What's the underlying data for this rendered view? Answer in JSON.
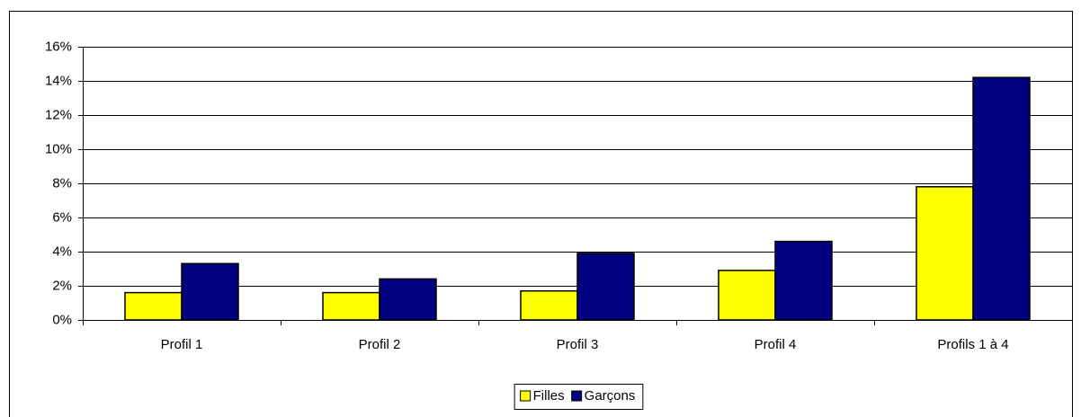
{
  "chart_data": {
    "type": "bar",
    "categories": [
      "Profil 1",
      "Profil 2",
      "Profil 3",
      "Profil 4",
      "Profils 1 à 4"
    ],
    "series": [
      {
        "name": "Filles",
        "color": "#ffff00",
        "values": [
          1.6,
          1.6,
          1.7,
          2.9,
          7.8
        ]
      },
      {
        "name": "Garçons",
        "color": "#000080",
        "values": [
          3.3,
          2.4,
          3.9,
          4.6,
          14.2
        ]
      }
    ],
    "ylim": [
      0,
      16
    ],
    "yticks": [
      {
        "value": 0,
        "label": "0%"
      },
      {
        "value": 2,
        "label": "2%"
      },
      {
        "value": 4,
        "label": "4%"
      },
      {
        "value": 6,
        "label": "6%"
      },
      {
        "value": 8,
        "label": "8%"
      },
      {
        "value": 10,
        "label": "10%"
      },
      {
        "value": 12,
        "label": "12%"
      },
      {
        "value": 14,
        "label": "14%"
      },
      {
        "value": 16,
        "label": "16%"
      }
    ],
    "grid": true,
    "legend": "bottom"
  }
}
